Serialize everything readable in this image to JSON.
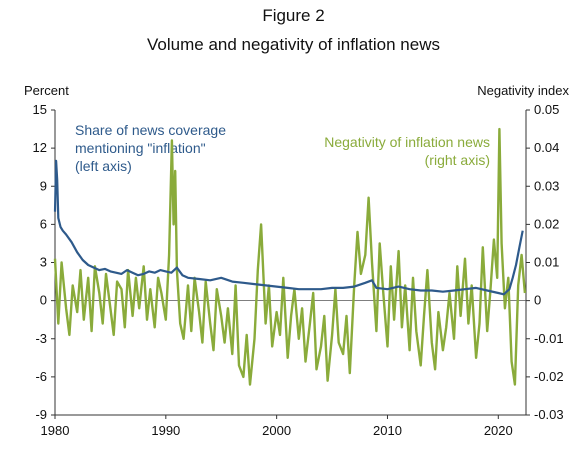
{
  "figure_label": "Figure 2",
  "title": "Volume and negativity of inflation news",
  "left_axis_unit": "Percent",
  "right_axis_unit": "Negativity index",
  "annotations": {
    "left_series": [
      "Share of news coverage",
      "mentioning \"inflation\"",
      "(left axis)"
    ],
    "right_series": [
      "Negativity of inflation news",
      "(right axis)"
    ]
  },
  "colors": {
    "share_series": "#2e5a8b",
    "negativity_series": "#8aab3b",
    "axis": "#333333",
    "zero_line": "#555555"
  },
  "chart_data": {
    "type": "line",
    "x_ticks": [
      "1980",
      "1990",
      "2000",
      "2010",
      "2020"
    ],
    "xlim": [
      1980,
      2022.5
    ],
    "y_left_ticks": [
      "15",
      "12",
      "9",
      "6",
      "3",
      "0",
      "-3",
      "-6",
      "-9"
    ],
    "y_left_lim": [
      -9,
      15
    ],
    "y_right_ticks": [
      "0.05",
      "0.04",
      "0.03",
      "0.02",
      "0.01",
      "0",
      "-0.01",
      "-0.02",
      "-0.03"
    ],
    "y_right_lim": [
      -0.03,
      0.05
    ],
    "series": [
      {
        "name": "Share of news coverage mentioning \"inflation\"",
        "axis": "left",
        "x": [
          1980.0,
          1980.1,
          1980.2,
          1980.3,
          1980.5,
          1980.7,
          1981.0,
          1981.5,
          1982.0,
          1982.5,
          1983.0,
          1983.5,
          1984.0,
          1984.5,
          1985.0,
          1985.5,
          1986.0,
          1986.5,
          1987.0,
          1987.5,
          1988.0,
          1988.5,
          1989.0,
          1989.5,
          1990.0,
          1990.5,
          1991.0,
          1991.5,
          1992.0,
          1993.0,
          1994.0,
          1995.0,
          1996.0,
          1997.0,
          1998.0,
          1999.0,
          2000.0,
          2001.0,
          2002.0,
          2003.0,
          2004.0,
          2005.0,
          2006.0,
          2007.0,
          2008.0,
          2008.6,
          2009.0,
          2010.0,
          2011.0,
          2012.0,
          2013.0,
          2014.0,
          2015.0,
          2016.0,
          2017.0,
          2018.0,
          2019.0,
          2020.0,
          2020.5,
          2021.0,
          2021.3,
          2021.6,
          2021.9,
          2022.2
        ],
        "values": [
          7.0,
          11.0,
          9.5,
          6.5,
          5.8,
          5.5,
          5.2,
          4.6,
          3.8,
          3.2,
          2.8,
          2.6,
          2.4,
          2.5,
          2.3,
          2.2,
          2.1,
          2.4,
          2.2,
          2.0,
          2.1,
          2.3,
          2.2,
          2.4,
          2.3,
          2.2,
          2.6,
          2.0,
          1.8,
          1.7,
          1.6,
          1.8,
          1.5,
          1.4,
          1.3,
          1.2,
          1.1,
          1.0,
          0.9,
          0.9,
          0.9,
          1.0,
          1.0,
          1.1,
          1.4,
          1.6,
          1.0,
          0.9,
          1.1,
          0.9,
          0.8,
          0.8,
          0.7,
          0.8,
          0.9,
          1.0,
          0.8,
          0.6,
          0.5,
          0.9,
          1.8,
          2.8,
          4.2,
          5.5
        ]
      },
      {
        "name": "Negativity of inflation news",
        "axis": "right",
        "x": [
          1980.0,
          1980.3,
          1980.6,
          1981.0,
          1981.3,
          1981.6,
          1982.0,
          1982.3,
          1982.6,
          1983.0,
          1983.3,
          1983.6,
          1984.0,
          1984.3,
          1984.6,
          1985.0,
          1985.3,
          1985.6,
          1986.0,
          1986.3,
          1986.6,
          1987.0,
          1987.3,
          1987.6,
          1988.0,
          1988.3,
          1988.6,
          1989.0,
          1989.3,
          1989.6,
          1990.0,
          1990.3,
          1990.55,
          1990.7,
          1990.85,
          1991.0,
          1991.3,
          1991.6,
          1992.0,
          1992.3,
          1992.6,
          1993.0,
          1993.3,
          1993.6,
          1994.0,
          1994.3,
          1994.6,
          1995.0,
          1995.3,
          1995.6,
          1996.0,
          1996.3,
          1996.6,
          1997.0,
          1997.3,
          1997.6,
          1998.0,
          1998.3,
          1998.6,
          1999.0,
          1999.3,
          1999.6,
          2000.0,
          2000.3,
          2000.6,
          2001.0,
          2001.3,
          2001.6,
          2002.0,
          2002.3,
          2002.6,
          2003.0,
          2003.3,
          2003.6,
          2004.0,
          2004.3,
          2004.6,
          2005.0,
          2005.3,
          2005.6,
          2006.0,
          2006.3,
          2006.6,
          2007.0,
          2007.3,
          2007.6,
          2008.0,
          2008.3,
          2008.6,
          2009.0,
          2009.3,
          2009.6,
          2010.0,
          2010.3,
          2010.6,
          2011.0,
          2011.3,
          2011.6,
          2012.0,
          2012.3,
          2012.6,
          2013.0,
          2013.3,
          2013.6,
          2014.0,
          2014.3,
          2014.6,
          2015.0,
          2015.3,
          2015.6,
          2016.0,
          2016.3,
          2016.6,
          2017.0,
          2017.3,
          2017.6,
          2018.0,
          2018.3,
          2018.6,
          2019.0,
          2019.3,
          2019.6,
          2019.9,
          2020.1,
          2020.3,
          2020.6,
          2020.9,
          2021.2,
          2021.5,
          2021.8,
          2022.1,
          2022.4
        ],
        "values": [
          0.011,
          -0.006,
          0.01,
          -0.002,
          -0.009,
          0.004,
          -0.003,
          0.008,
          -0.005,
          0.006,
          -0.008,
          0.009,
          0.002,
          -0.006,
          0.007,
          -0.002,
          -0.009,
          0.005,
          0.003,
          -0.007,
          0.008,
          -0.004,
          0.006,
          -0.002,
          0.009,
          -0.005,
          0.003,
          -0.007,
          0.006,
          0.002,
          -0.005,
          0.012,
          0.042,
          0.02,
          0.034,
          0.008,
          -0.006,
          -0.01,
          0.004,
          -0.008,
          0.006,
          -0.003,
          -0.011,
          0.005,
          -0.006,
          -0.013,
          0.003,
          -0.004,
          -0.011,
          -0.002,
          -0.014,
          0.004,
          -0.017,
          -0.02,
          -0.009,
          -0.022,
          -0.01,
          0.008,
          0.02,
          -0.006,
          0.004,
          -0.012,
          -0.003,
          -0.009,
          0.006,
          -0.015,
          -0.004,
          0.003,
          -0.01,
          -0.002,
          -0.016,
          -0.006,
          0.002,
          -0.018,
          -0.012,
          -0.004,
          -0.021,
          -0.009,
          0.003,
          -0.011,
          -0.014,
          -0.004,
          -0.019,
          0.004,
          0.018,
          0.007,
          0.012,
          0.027,
          0.01,
          -0.008,
          0.015,
          0.003,
          -0.012,
          0.009,
          -0.005,
          0.013,
          -0.007,
          0.004,
          -0.013,
          0.006,
          -0.008,
          -0.017,
          -0.004,
          0.008,
          -0.011,
          -0.018,
          -0.003,
          -0.013,
          -0.007,
          0.002,
          -0.01,
          0.009,
          -0.004,
          0.011,
          -0.006,
          0.004,
          -0.015,
          -0.006,
          0.014,
          -0.008,
          0.003,
          0.016,
          0.006,
          0.045,
          0.015,
          -0.002,
          0.006,
          -0.016,
          -0.022,
          0.004,
          0.012,
          0.002
        ]
      }
    ]
  }
}
